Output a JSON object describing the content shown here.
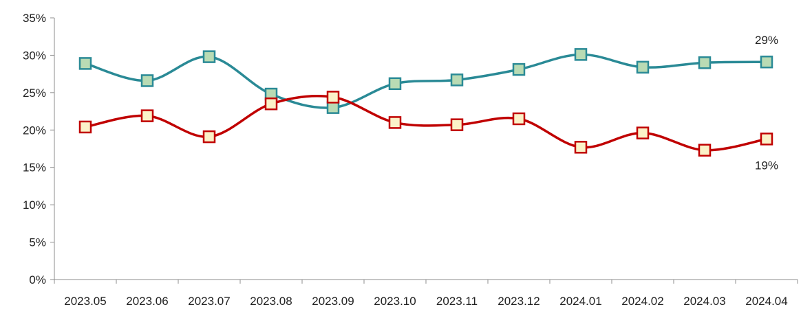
{
  "chart_data": {
    "type": "line",
    "title": "",
    "xlabel": "",
    "ylabel": "",
    "categories": [
      "2023.05",
      "2023.06",
      "2023.07",
      "2023.08",
      "2023.09",
      "2023.10",
      "2023.11",
      "2023.12",
      "2024.01",
      "2024.02",
      "2024.03",
      "2024.04"
    ],
    "ylim": [
      0,
      35
    ],
    "yticks": [
      0,
      5,
      10,
      15,
      20,
      25,
      30,
      35
    ],
    "ytick_labels": [
      "0%",
      "5%",
      "10%",
      "15%",
      "20%",
      "25%",
      "30%",
      "35%"
    ],
    "grid": false,
    "legend": "none",
    "smooth": true,
    "series": [
      {
        "color": "#2a8a96",
        "marker_fill": "#b9dbb4",
        "values": [
          28.9,
          26.6,
          29.8,
          24.8,
          23.0,
          26.2,
          26.7,
          28.1,
          30.1,
          28.4,
          29.0,
          29.1
        ],
        "end_label": "29%",
        "end_label_position": "above"
      },
      {
        "color": "#c00000",
        "marker_fill": "#fbf2c8",
        "values": [
          20.4,
          21.9,
          19.1,
          23.5,
          24.4,
          21.0,
          20.7,
          21.5,
          17.7,
          19.6,
          17.3,
          18.8
        ],
        "end_label": "19%",
        "end_label_position": "below"
      }
    ]
  }
}
